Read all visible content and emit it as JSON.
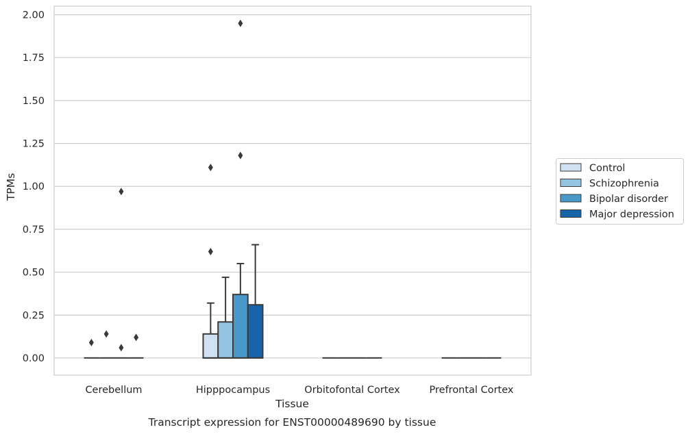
{
  "chart_data": {
    "type": "box",
    "xlabel": "Tissue",
    "ylabel": "TPMs",
    "caption": "Transcript expression for ENST00000489690 by tissue",
    "ylim": [
      -0.1,
      2.05
    ],
    "yticks": [
      "0.00",
      "0.25",
      "0.50",
      "0.75",
      "1.00",
      "1.25",
      "1.50",
      "1.75",
      "2.00"
    ],
    "grid": true,
    "legend_position": "right",
    "categories": [
      "Cerebellum",
      "Hipppocampus",
      "Orbitofontal Cortex",
      "Prefrontal Cortex"
    ],
    "series": [
      {
        "name": "Control",
        "color": "#d0e1f2",
        "boxes": [
          {
            "q1": 0,
            "median": 0,
            "q3": 0,
            "whisker_low": 0,
            "whisker_high": 0,
            "outliers": [
              0.09
            ]
          },
          {
            "q1": 0,
            "median": 0,
            "q3": 0.14,
            "whisker_low": 0,
            "whisker_high": 0.32,
            "outliers": [
              0.62,
              1.11
            ]
          },
          {
            "q1": 0,
            "median": 0,
            "q3": 0,
            "whisker_low": 0,
            "whisker_high": 0,
            "outliers": []
          },
          {
            "q1": 0,
            "median": 0,
            "q3": 0,
            "whisker_low": 0,
            "whisker_high": 0,
            "outliers": []
          }
        ]
      },
      {
        "name": "Schizophrenia",
        "color": "#94c4df",
        "boxes": [
          {
            "q1": 0,
            "median": 0,
            "q3": 0,
            "whisker_low": 0,
            "whisker_high": 0,
            "outliers": [
              0.14
            ]
          },
          {
            "q1": 0,
            "median": 0,
            "q3": 0.21,
            "whisker_low": 0,
            "whisker_high": 0.47,
            "outliers": []
          },
          {
            "q1": 0,
            "median": 0,
            "q3": 0,
            "whisker_low": 0,
            "whisker_high": 0,
            "outliers": []
          },
          {
            "q1": 0,
            "median": 0,
            "q3": 0,
            "whisker_low": 0,
            "whisker_high": 0,
            "outliers": []
          }
        ]
      },
      {
        "name": "Bipolar disorder",
        "color": "#4a98c9",
        "boxes": [
          {
            "q1": 0,
            "median": 0,
            "q3": 0,
            "whisker_low": 0,
            "whisker_high": 0,
            "outliers": [
              0.06,
              0.97
            ]
          },
          {
            "q1": 0,
            "median": 0,
            "q3": 0.37,
            "whisker_low": 0,
            "whisker_high": 0.55,
            "outliers": [
              1.18,
              1.95
            ]
          },
          {
            "q1": 0,
            "median": 0,
            "q3": 0,
            "whisker_low": 0,
            "whisker_high": 0,
            "outliers": []
          },
          {
            "q1": 0,
            "median": 0,
            "q3": 0,
            "whisker_low": 0,
            "whisker_high": 0,
            "outliers": []
          }
        ]
      },
      {
        "name": "Major depression",
        "color": "#1764ab",
        "boxes": [
          {
            "q1": 0,
            "median": 0,
            "q3": 0,
            "whisker_low": 0,
            "whisker_high": 0,
            "outliers": [
              0.12
            ]
          },
          {
            "q1": 0,
            "median": 0,
            "q3": 0.31,
            "whisker_low": 0,
            "whisker_high": 0.66,
            "outliers": []
          },
          {
            "q1": 0,
            "median": 0,
            "q3": 0,
            "whisker_low": 0,
            "whisker_high": 0,
            "outliers": []
          },
          {
            "q1": 0,
            "median": 0,
            "q3": 0,
            "whisker_low": 0,
            "whisker_high": 0,
            "outliers": []
          }
        ]
      }
    ]
  }
}
